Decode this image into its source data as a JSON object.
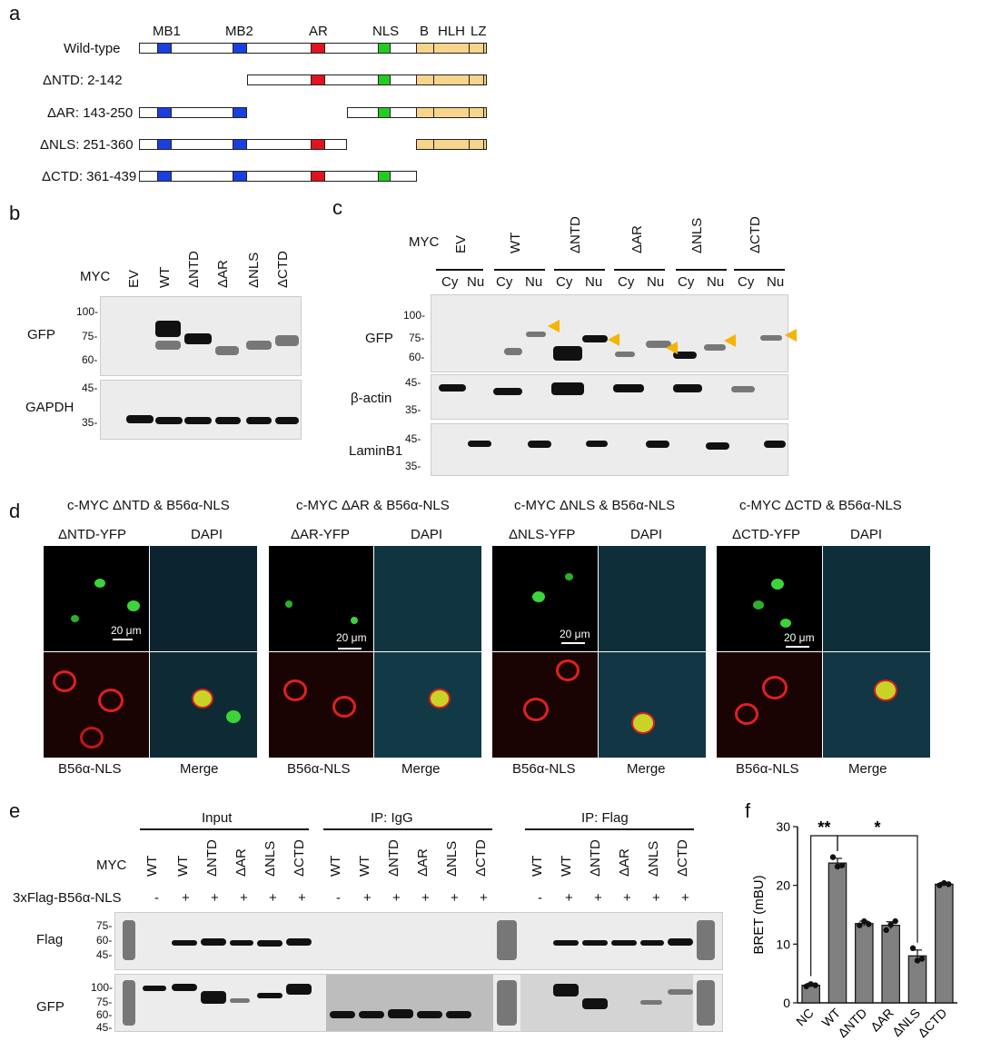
{
  "panels": {
    "a": "a",
    "b": "b",
    "c": "c",
    "d": "d",
    "e": "e",
    "f": "f"
  },
  "panel_a": {
    "domains": [
      "MB1",
      "MB2",
      "AR",
      "NLS",
      "B",
      "HLH",
      "LZ"
    ],
    "constructs": [
      "Wild-type",
      "ΔNTD: 2-142",
      "ΔAR: 143-250",
      "ΔNLS: 251-360",
      "ΔCTD: 361-439"
    ],
    "colors": {
      "MB": "#1a3fe0",
      "AR": "#e0141c",
      "NLS": "#22cc22",
      "CTD": "#f7d48c"
    }
  },
  "panel_b": {
    "myc_label": "MYC",
    "lanes": [
      "EV",
      "WT",
      "ΔNTD",
      "ΔAR",
      "ΔNLS",
      "ΔCTD"
    ],
    "blot1_label": "GFP",
    "blot1_markers": [
      "100-",
      "75-",
      "60-"
    ],
    "blot2_label": "GAPDH",
    "blot2_markers": [
      "45-",
      "35-"
    ]
  },
  "panel_c": {
    "myc_label": "MYC",
    "lanes": [
      "EV",
      "WT",
      "ΔNTD",
      "ΔAR",
      "ΔNLS",
      "ΔCTD"
    ],
    "fractions": [
      "Cy",
      "Nu",
      "Cy",
      "Nu",
      "Cy",
      "Nu",
      "Cy",
      "Nu",
      "Cy",
      "Nu",
      "Cy",
      "Nu"
    ],
    "blot1_label": "GFP",
    "blot1_markers": [
      "100-",
      "75-",
      "60-"
    ],
    "blot2_label": "β-actin",
    "blot2_markers": [
      "45-",
      "35-"
    ],
    "blot3_label": "LaminB1",
    "blot3_markers": [
      "45-",
      "35-"
    ]
  },
  "panel_d": {
    "titles": [
      "c-MYC ΔNTD & B56α-NLS",
      "c-MYC ΔAR & B56α-NLS",
      "c-MYC ΔNLS & B56α-NLS",
      "c-MYC ΔCTD & B56α-NLS"
    ],
    "top_labels": [
      [
        "ΔNTD-YFP",
        "DAPI"
      ],
      [
        "ΔAR-YFP",
        "DAPI"
      ],
      [
        "ΔNLS-YFP",
        "DAPI"
      ],
      [
        "ΔCTD-YFP",
        "DAPI"
      ]
    ],
    "bottom_labels": [
      "B56α-NLS",
      "Merge"
    ],
    "scale": "20 μm"
  },
  "panel_e": {
    "groups": [
      "Input",
      "IP: IgG",
      "IP: Flag"
    ],
    "myc_label": "MYC",
    "lanes": [
      "WT",
      "WT",
      "ΔNTD",
      "ΔAR",
      "ΔNLS",
      "ΔCTD"
    ],
    "flag_row_label": "3xFlag-B56α-NLS",
    "flag_row": [
      "-",
      "+",
      "+",
      "+",
      "+",
      "+"
    ],
    "blot1_label": "Flag",
    "blot1_markers": [
      "75-",
      "60-",
      "45-"
    ],
    "blot2_label": "GFP",
    "blot2_markers": [
      "100-",
      "75-",
      "60-",
      "45-"
    ]
  },
  "chart_data": {
    "type": "bar",
    "categories": [
      "NC",
      "WT",
      "ΔNTD",
      "ΔAR",
      "ΔNLS",
      "ΔCTD"
    ],
    "values": [
      3.0,
      23.8,
      13.5,
      13.2,
      8.0,
      20.2
    ],
    "errors": [
      0.3,
      0.8,
      0.4,
      0.6,
      1.0,
      0.3
    ],
    "points": [
      [
        2.8,
        3.2,
        3.0
      ],
      [
        24.8,
        23.2,
        23.4
      ],
      [
        13.2,
        13.9,
        13.4
      ],
      [
        12.4,
        13.3,
        13.9
      ],
      [
        9.3,
        7.2,
        7.5
      ],
      [
        20.0,
        20.4,
        20.2
      ]
    ],
    "ylabel": "BRET (mBU)",
    "ylim": [
      0,
      30
    ],
    "yticks": [
      "0",
      "10",
      "20",
      "30"
    ],
    "significance": [
      {
        "pair": [
          "NC",
          "WT"
        ],
        "label": "**"
      },
      {
        "pair": [
          "WT",
          "ΔNLS"
        ],
        "label": "*"
      }
    ],
    "bar_color": "#808080"
  }
}
